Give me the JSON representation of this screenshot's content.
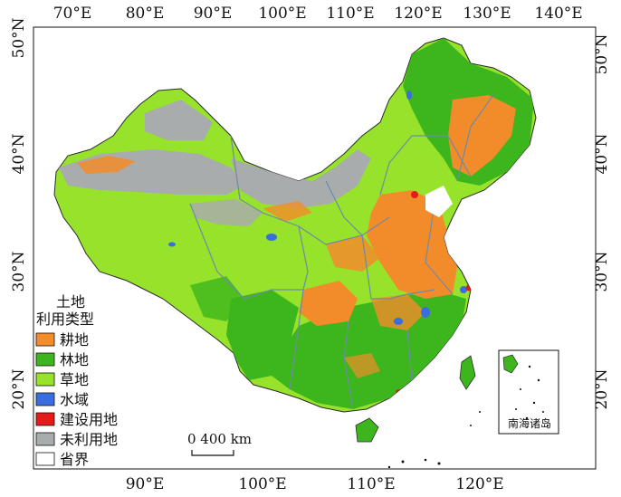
{
  "map": {
    "top_lon_labels": [
      "70°E",
      "80°E",
      "90°E",
      "100°E",
      "110°E",
      "120°E",
      "130°E",
      "140°E"
    ],
    "bottom_lon_labels": [
      "90°E",
      "100°E",
      "110°E",
      "120°E"
    ],
    "left_lat_labels": [
      "50°N",
      "40°N",
      "30°N",
      "20°N"
    ],
    "right_lat_labels": [
      "50°N",
      "40°N",
      "30°N",
      "20°N"
    ],
    "scale_bar": {
      "label": "0  400 km"
    },
    "inset_label": "南海诸岛"
  },
  "legend": {
    "title_line1": "土地",
    "title_line2": "利用类型",
    "items": [
      {
        "label": "耕地",
        "color": "#f28c2a"
      },
      {
        "label": "林地",
        "color": "#3db61d"
      },
      {
        "label": "草地",
        "color": "#97e22a"
      },
      {
        "label": "水域",
        "color": "#3a6de0"
      },
      {
        "label": "建设用地",
        "color": "#e51a1a"
      },
      {
        "label": "未利用地",
        "color": "#a8acac"
      },
      {
        "label": "省界",
        "color": "#ffffff"
      }
    ]
  },
  "colors": {
    "cropland": "#f28c2a",
    "forest": "#3db61d",
    "grassland": "#97e22a",
    "water": "#3a6de0",
    "builtup": "#e51a1a",
    "unused": "#a8acac",
    "border": "#7a8fa6"
  }
}
